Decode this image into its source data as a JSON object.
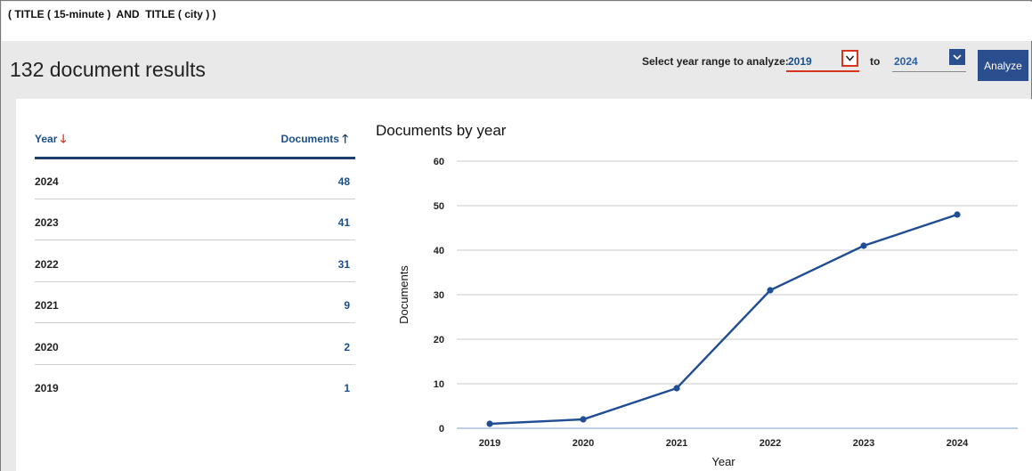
{
  "query": "( TITLE ( 15-minute )  AND  TITLE ( city ) )",
  "results_title": "132 document results",
  "range": {
    "label": "Select year range to analyze:",
    "from_value": "2019",
    "to_label": "to",
    "to_value": "2024",
    "analyze_label": "Analyze"
  },
  "table": {
    "year_header": "Year",
    "docs_header": "Documents",
    "rows": [
      {
        "year": "2024",
        "docs": "48"
      },
      {
        "year": "2023",
        "docs": "41"
      },
      {
        "year": "2022",
        "docs": "31"
      },
      {
        "year": "2021",
        "docs": "9"
      },
      {
        "year": "2020",
        "docs": "2"
      },
      {
        "year": "2019",
        "docs": "1"
      }
    ]
  },
  "colors": {
    "accent": "#2b4e8f",
    "highlight": "#d8341f",
    "line": "#1f4e94"
  },
  "icons": {
    "from_dropdown": "chevron-down-icon",
    "to_dropdown": "chevron-down-icon",
    "sort_year": "arrow-down-icon",
    "sort_docs": "arrow-up-icon"
  },
  "chart_data": {
    "type": "line",
    "title": "Documents by year",
    "xlabel": "Year",
    "ylabel": "Documents",
    "categories": [
      "2019",
      "2020",
      "2021",
      "2022",
      "2023",
      "2024"
    ],
    "values": [
      1,
      2,
      9,
      31,
      41,
      48
    ],
    "ylim": [
      0,
      60
    ],
    "yticks": [
      0,
      10,
      20,
      30,
      40,
      50,
      60
    ],
    "grid": true
  }
}
